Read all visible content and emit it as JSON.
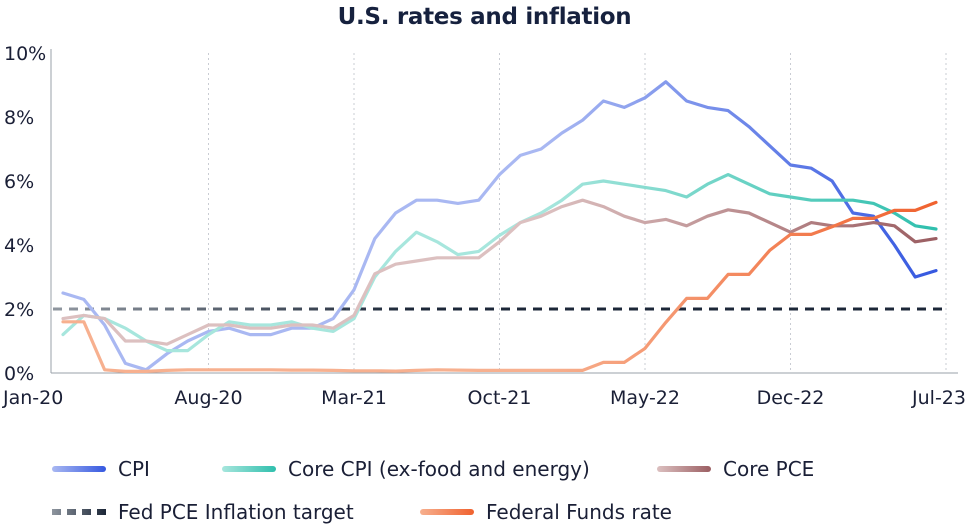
{
  "chart_data": {
    "type": "line",
    "title": "U.S. rates and inflation",
    "xlabel": "",
    "ylabel": "",
    "ylim": [
      0,
      10
    ],
    "y_ticks": [
      "0%",
      "2%",
      "4%",
      "6%",
      "8%",
      "10%"
    ],
    "x_tick_labels": [
      "Jan-20",
      "Aug-20",
      "Mar-21",
      "Oct-21",
      "May-22",
      "Dec-22",
      "Jul-23"
    ],
    "x": [
      "Jan-20",
      "Feb-20",
      "Mar-20",
      "Apr-20",
      "May-20",
      "Jun-20",
      "Jul-20",
      "Aug-20",
      "Sep-20",
      "Oct-20",
      "Nov-20",
      "Dec-20",
      "Jan-21",
      "Feb-21",
      "Mar-21",
      "Apr-21",
      "May-21",
      "Jun-21",
      "Jul-21",
      "Aug-21",
      "Sep-21",
      "Oct-21",
      "Nov-21",
      "Dec-21",
      "Jan-22",
      "Feb-22",
      "Mar-22",
      "Apr-22",
      "May-22",
      "Jun-22",
      "Jul-22",
      "Aug-22",
      "Sep-22",
      "Oct-22",
      "Nov-22",
      "Dec-22",
      "Jan-23",
      "Feb-23",
      "Mar-23",
      "Apr-23",
      "May-23",
      "Jun-23",
      "Jul-23"
    ],
    "grid": "vertical dotted",
    "legend_position": "bottom",
    "series": [
      {
        "name": "CPI",
        "color": "#3558e0",
        "color_start": "#a9b8f2",
        "values": [
          2.5,
          2.3,
          1.5,
          0.3,
          0.1,
          0.6,
          1.0,
          1.3,
          1.4,
          1.2,
          1.2,
          1.4,
          1.4,
          1.7,
          2.6,
          4.2,
          5.0,
          5.4,
          5.4,
          5.3,
          5.4,
          6.2,
          6.8,
          7.0,
          7.5,
          7.9,
          8.5,
          8.3,
          8.6,
          9.1,
          8.5,
          8.3,
          8.2,
          7.7,
          7.1,
          6.5,
          6.4,
          6.0,
          5.0,
          4.9,
          4.0,
          3.0,
          3.2
        ]
      },
      {
        "name": "Core CPI (ex-food and energy)",
        "color": "#2fbfad",
        "color_start": "#a7e6dd",
        "values": [
          1.2,
          1.8,
          1.7,
          1.4,
          1.0,
          0.7,
          0.7,
          1.2,
          1.6,
          1.5,
          1.5,
          1.6,
          1.4,
          1.3,
          1.7,
          3.0,
          3.8,
          4.4,
          4.1,
          3.7,
          3.8,
          4.3,
          4.7,
          5.0,
          5.4,
          5.9,
          6.0,
          5.9,
          5.8,
          5.7,
          5.5,
          5.9,
          6.2,
          5.9,
          5.6,
          5.5,
          5.4,
          5.4,
          5.4,
          5.3,
          5.0,
          4.6,
          4.5
        ]
      },
      {
        "name": "Core PCE",
        "color": "#9b5e62",
        "color_start": "#dcc0c0",
        "values": [
          1.7,
          1.8,
          1.7,
          1.0,
          1.0,
          0.9,
          1.2,
          1.5,
          1.5,
          1.4,
          1.4,
          1.5,
          1.5,
          1.4,
          1.8,
          3.1,
          3.4,
          3.5,
          3.6,
          3.6,
          3.6,
          4.1,
          4.7,
          4.9,
          5.2,
          5.4,
          5.2,
          4.9,
          4.7,
          4.8,
          4.6,
          4.9,
          5.1,
          5.0,
          4.7,
          4.4,
          4.7,
          4.6,
          4.6,
          4.7,
          4.6,
          4.1,
          4.2
        ]
      },
      {
        "name": "Fed PCE Inflation target",
        "color": "#1c2738",
        "color_start": "#8e959e",
        "dashed": true,
        "values": [
          2,
          2,
          2,
          2,
          2,
          2,
          2,
          2,
          2,
          2,
          2,
          2,
          2,
          2,
          2,
          2,
          2,
          2,
          2,
          2,
          2,
          2,
          2,
          2,
          2,
          2,
          2,
          2,
          2,
          2,
          2,
          2,
          2,
          2,
          2,
          2,
          2,
          2,
          2,
          2,
          2,
          2,
          2
        ]
      },
      {
        "name": "Federal Funds rate",
        "color": "#f0622f",
        "color_start": "#f7b08f",
        "values": [
          1.6,
          1.6,
          0.1,
          0.05,
          0.05,
          0.08,
          0.1,
          0.1,
          0.1,
          0.1,
          0.1,
          0.09,
          0.09,
          0.08,
          0.07,
          0.07,
          0.06,
          0.08,
          0.1,
          0.09,
          0.08,
          0.08,
          0.08,
          0.08,
          0.08,
          0.08,
          0.33,
          0.33,
          0.77,
          1.58,
          2.33,
          2.33,
          3.08,
          3.08,
          3.83,
          4.33,
          4.33,
          4.57,
          4.83,
          4.83,
          5.08,
          5.08,
          5.33
        ]
      }
    ]
  },
  "legend": [
    {
      "label": "CPI",
      "color": "#3558e0",
      "color_start": "#a9b8f2"
    },
    {
      "label": "Core CPI (ex-food and energy)",
      "color": "#2fbfad",
      "color_start": "#a7e6dd"
    },
    {
      "label": "Core PCE",
      "color": "#9b5e62",
      "color_start": "#dcc0c0"
    },
    {
      "label": "Fed PCE Inflation target",
      "color": "#1c2738",
      "color_start": "#8e959e",
      "dashed": true
    },
    {
      "label": "Federal Funds rate",
      "color": "#f0622f",
      "color_start": "#f7b08f"
    }
  ]
}
